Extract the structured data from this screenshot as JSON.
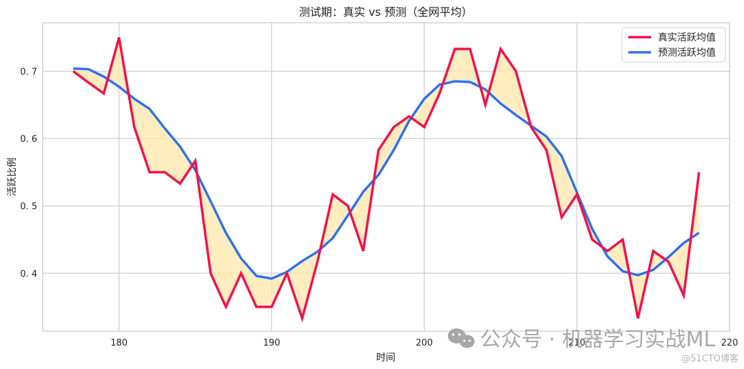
{
  "chart_data": {
    "type": "line",
    "title": "测试期：真实 vs 预测（全网平均）",
    "xlabel": "时间",
    "ylabel": "活跃比例",
    "xlim": [
      175,
      220
    ],
    "ylim": [
      0.314,
      0.772
    ],
    "xticks": [
      180,
      190,
      200,
      210,
      220
    ],
    "yticks": [
      0.4,
      0.5,
      0.6,
      0.7
    ],
    "grid": true,
    "legend_position": "upper right",
    "fill_between": {
      "color": "#FFE9B0",
      "between": [
        "真实活跃均值",
        "预测活跃均值"
      ]
    },
    "x": [
      177,
      178,
      179,
      180,
      181,
      182,
      183,
      184,
      185,
      186,
      187,
      188,
      189,
      190,
      191,
      192,
      193,
      194,
      195,
      196,
      197,
      198,
      199,
      200,
      201,
      202,
      203,
      204,
      205,
      206,
      207,
      208,
      209,
      210,
      211,
      212,
      213,
      214,
      215,
      216,
      217,
      218
    ],
    "series": [
      {
        "name": "真实活跃均值",
        "color": "#F5104A",
        "values": [
          0.7,
          0.683,
          0.667,
          0.75,
          0.617,
          0.55,
          0.55,
          0.533,
          0.567,
          0.4,
          0.35,
          0.4,
          0.35,
          0.35,
          0.4,
          0.333,
          0.417,
          0.517,
          0.5,
          0.433,
          0.583,
          0.617,
          0.633,
          0.617,
          0.667,
          0.733,
          0.733,
          0.65,
          0.733,
          0.7,
          0.617,
          0.583,
          0.483,
          0.517,
          0.45,
          0.433,
          0.45,
          0.333,
          0.433,
          0.417,
          0.367,
          0.55
        ]
      },
      {
        "name": "预测活跃均值",
        "color": "#2F6FF2",
        "values": [
          0.704,
          0.703,
          0.692,
          0.677,
          0.659,
          0.644,
          0.615,
          0.588,
          0.553,
          0.507,
          0.46,
          0.422,
          0.396,
          0.392,
          0.402,
          0.418,
          0.432,
          0.452,
          0.486,
          0.521,
          0.546,
          0.583,
          0.626,
          0.659,
          0.68,
          0.685,
          0.684,
          0.673,
          0.652,
          0.635,
          0.619,
          0.603,
          0.574,
          0.52,
          0.466,
          0.425,
          0.403,
          0.397,
          0.405,
          0.424,
          0.445,
          0.46
        ]
      }
    ]
  },
  "watermark": {
    "main": "公众号 · 机器学习实战ML",
    "source": "@51CTO博客"
  },
  "ytick_labels": [
    "0. 4",
    "0. 5",
    "0. 6",
    "0. 7"
  ],
  "xtick_labels": [
    "180",
    "190",
    "200",
    "210",
    "220"
  ]
}
